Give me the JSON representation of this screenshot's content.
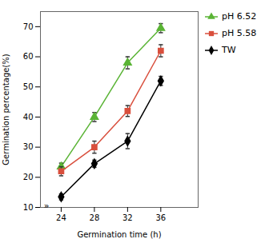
{
  "chart_data": {
    "type": "line",
    "xlabel": "Germination time (h)",
    "ylabel": "Germination percentage(%)",
    "x": [
      24,
      28,
      32,
      36
    ],
    "series": [
      {
        "name": "pH 6.52",
        "color": "#5ab435",
        "marker": "triangle",
        "values": [
          23.5,
          40.0,
          58.0,
          69.5
        ],
        "yerr": [
          1.2,
          1.5,
          2.0,
          1.5
        ]
      },
      {
        "name": "pH 5.58",
        "color": "#d94f3d",
        "marker": "square",
        "values": [
          22.0,
          30.0,
          42.0,
          62.0
        ],
        "yerr": [
          1.5,
          2.0,
          1.8,
          2.0
        ]
      },
      {
        "name": "TW",
        "color": "#000000",
        "marker": "diamond",
        "values": [
          13.5,
          24.5,
          32.0,
          52.0
        ],
        "yerr": [
          1.0,
          1.2,
          2.5,
          1.5
        ]
      }
    ],
    "xlim": [
      21.5,
      40.5
    ],
    "xticks": [
      24,
      28,
      32,
      36
    ],
    "ylim": [
      10,
      75
    ],
    "yticks": [
      10,
      20,
      30,
      40,
      50,
      60,
      70
    ],
    "grid": false,
    "legend": "right",
    "annotations": [
      {
        "text": "»",
        "x": 21.9,
        "y": 10.5
      }
    ]
  }
}
